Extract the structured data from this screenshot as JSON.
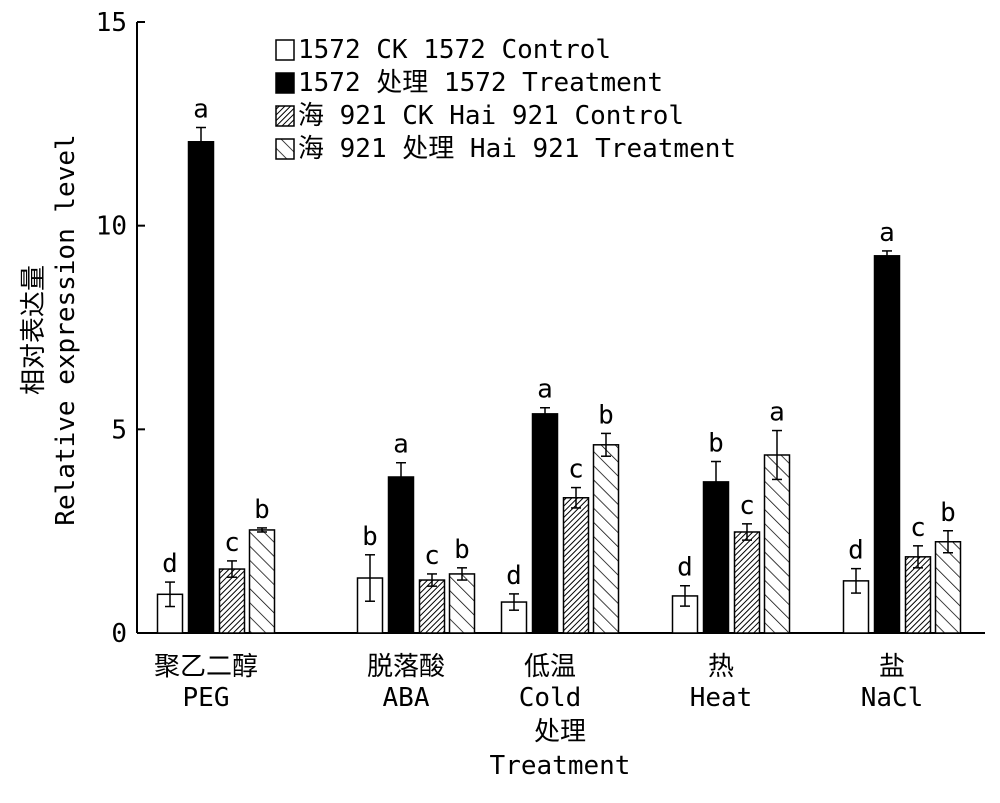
{
  "chart_data": {
    "type": "bar",
    "title": "",
    "ylabel_cn": "相对表达量",
    "ylabel": "Relative expression level",
    "xlabel": "",
    "ylim": [
      0,
      15
    ],
    "yticks": [
      "0",
      "5",
      "10",
      "15"
    ],
    "ytick_values": [
      0,
      5,
      10,
      15
    ],
    "legend_position": "top",
    "categories": [
      {
        "cn": "聚乙二醇",
        "en": "PEG"
      },
      {
        "cn": "脱落酸",
        "en": "ABA"
      },
      {
        "cn": "低温",
        "en": "Cold"
      },
      {
        "cn": "热",
        "en": "Heat"
      },
      {
        "cn": "盐",
        "en": "NaCl"
      }
    ],
    "x_group_label_cn": "处理",
    "x_group_label_en": "Treatment",
    "series": [
      {
        "name": "1572 CK 1572 Control",
        "style": "white",
        "values": [
          0.95,
          1.35,
          0.76,
          0.91,
          1.28
        ],
        "errors": [
          0.3,
          0.57,
          0.2,
          0.25,
          0.3
        ],
        "letters": [
          "d",
          "b",
          "d",
          "d",
          "d"
        ]
      },
      {
        "name": "1572 处理 1572 Treatment",
        "style": "black",
        "values": [
          12.06,
          3.83,
          5.38,
          3.71,
          9.26
        ],
        "errors": [
          0.35,
          0.35,
          0.15,
          0.5,
          0.12
        ],
        "letters": [
          "a",
          "a",
          "a",
          "b",
          "a"
        ]
      },
      {
        "name": "海 921 CK Hai 921 Control",
        "style": "dense-hatch",
        "values": [
          1.57,
          1.3,
          3.32,
          2.48,
          1.87
        ],
        "errors": [
          0.2,
          0.15,
          0.25,
          0.2,
          0.27
        ],
        "letters": [
          "c",
          "c",
          "c",
          "c",
          "c"
        ]
      },
      {
        "name": "海 921 处理 Hai 921 Treatment",
        "style": "sparse-hatch",
        "values": [
          2.53,
          1.45,
          4.62,
          4.37,
          2.24
        ],
        "errors": [
          0.05,
          0.15,
          0.28,
          0.6,
          0.27
        ],
        "letters": [
          "b",
          "b",
          "b",
          "a",
          "b"
        ]
      }
    ]
  }
}
